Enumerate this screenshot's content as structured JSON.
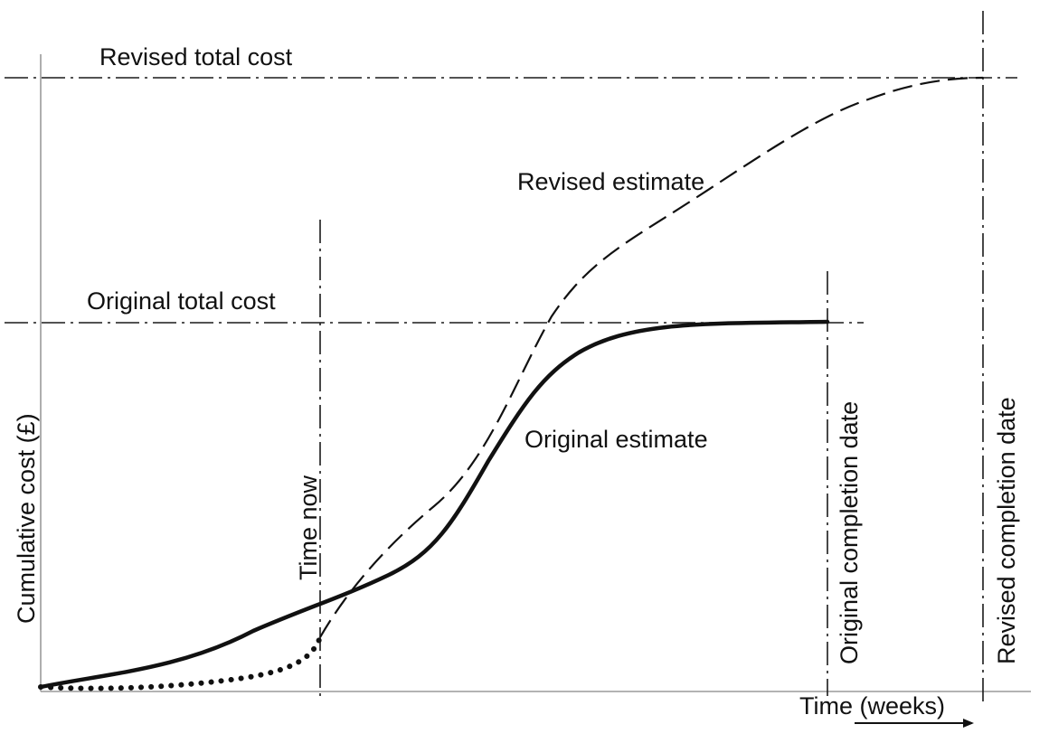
{
  "labels": {
    "revised_total_cost": "Revised total cost",
    "revised_estimate": "Revised estimate",
    "original_total_cost": "Original total cost",
    "original_estimate": "Original estimate",
    "y_axis": "Cumulative cost (£)",
    "time_now": "Time now",
    "original_completion_date": "Original completion date",
    "revised_completion_date": "Revised completion date",
    "x_axis": "Time (weeks)"
  },
  "colors": {
    "line": "#111111",
    "axis": "#9a9a9a",
    "background": "#ffffff"
  }
}
